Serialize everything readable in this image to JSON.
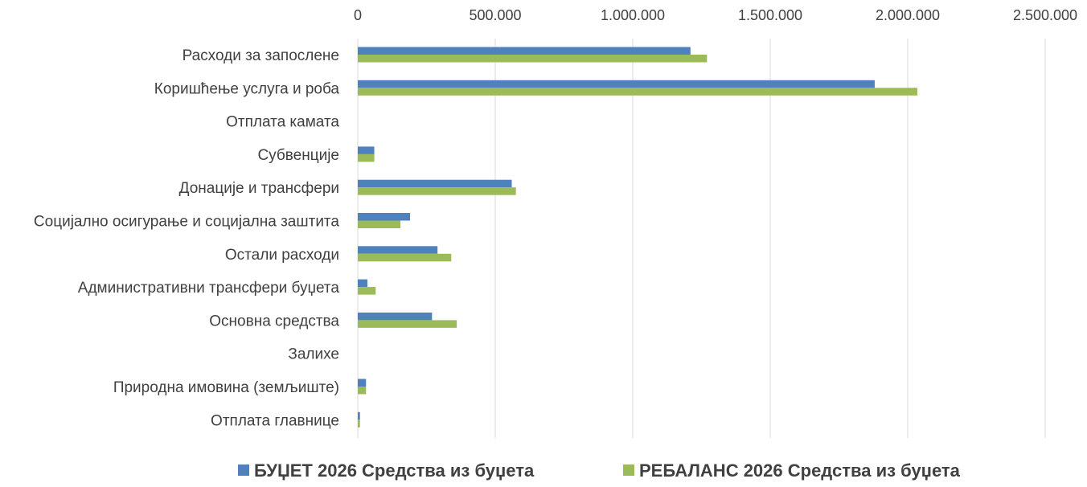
{
  "chart_data": {
    "type": "bar",
    "orientation": "horizontal",
    "title": "",
    "xlabel": "",
    "ylabel": "",
    "xlim": [
      0,
      2500000
    ],
    "tick_values": [
      0,
      500000,
      1000000,
      1500000,
      2000000,
      2500000
    ],
    "tick_labels": [
      "0",
      "500.000",
      "1.000.000",
      "1.500.000",
      "2.000.000",
      "2.500.000"
    ],
    "grid": true,
    "legend_position": "bottom",
    "categories": [
      "Расходи за запослене",
      "Коришћење услуга и роба",
      "Отплата камата",
      "Субвенције",
      "Донације и трансфери",
      "Социјално осигурање и социјална заштита",
      "Остали расходи",
      "Административни трансфери буџета",
      "Основна средства",
      "Залихе",
      "Природна имовина (земљиште)",
      "Отплата главнице"
    ],
    "series": [
      {
        "name": "БУЏЕТ 2026 Средства из буџета",
        "color": "#4f81bd",
        "values": [
          1210000,
          1880000,
          0,
          60000,
          560000,
          190000,
          290000,
          35000,
          270000,
          0,
          30000,
          8000
        ]
      },
      {
        "name": "РЕБАЛАНС  2026 Средства из буџета",
        "color": "#9bbb59",
        "values": [
          1270000,
          2035000,
          0,
          60000,
          575000,
          155000,
          340000,
          65000,
          360000,
          0,
          30000,
          8000
        ]
      }
    ]
  }
}
